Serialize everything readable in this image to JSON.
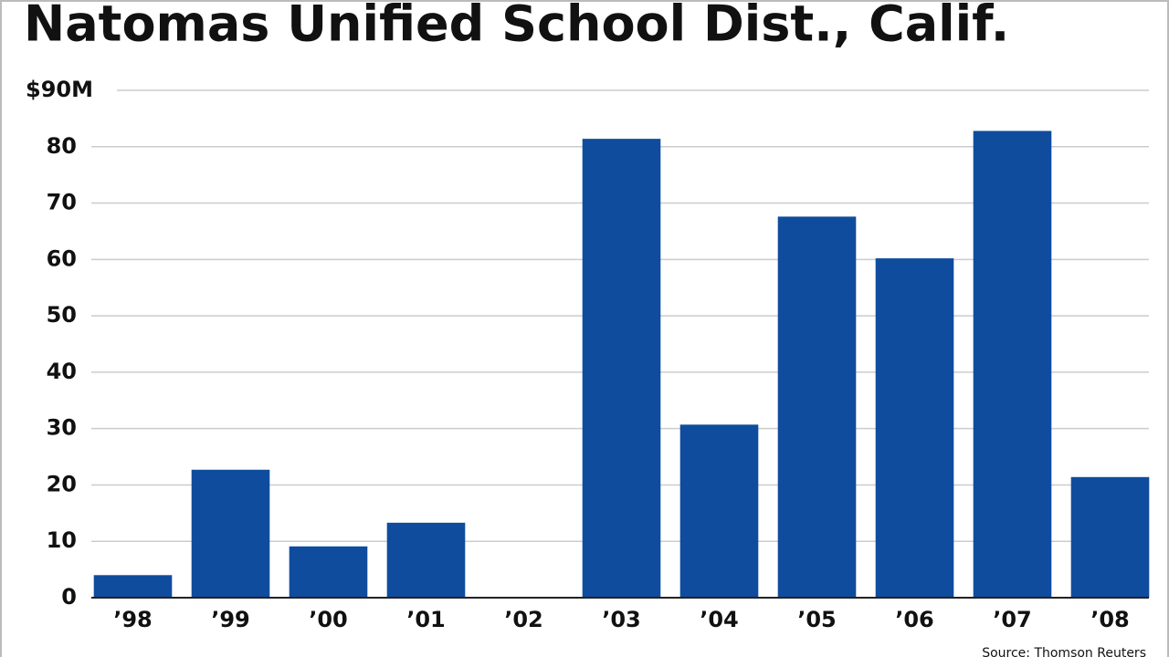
{
  "chart_data": {
    "type": "bar",
    "title": "Natomas Unified School Dist., Calif.",
    "categories": [
      "’98",
      "’99",
      "’00",
      "’01",
      "’02",
      "’03",
      "’04",
      "’05",
      "’06",
      "’07",
      "’08"
    ],
    "values": [
      4.0,
      22.7,
      9.1,
      13.3,
      0,
      81.4,
      30.7,
      67.6,
      60.2,
      82.8,
      21.4
    ],
    "color": "#0f4c9e",
    "ylim": [
      0,
      90
    ],
    "yticks": [
      0,
      10,
      20,
      30,
      40,
      50,
      60,
      70,
      80,
      {
        "value": 90,
        "label": "$90M"
      }
    ],
    "grid": true,
    "source": "Source: Thomson Reuters"
  }
}
